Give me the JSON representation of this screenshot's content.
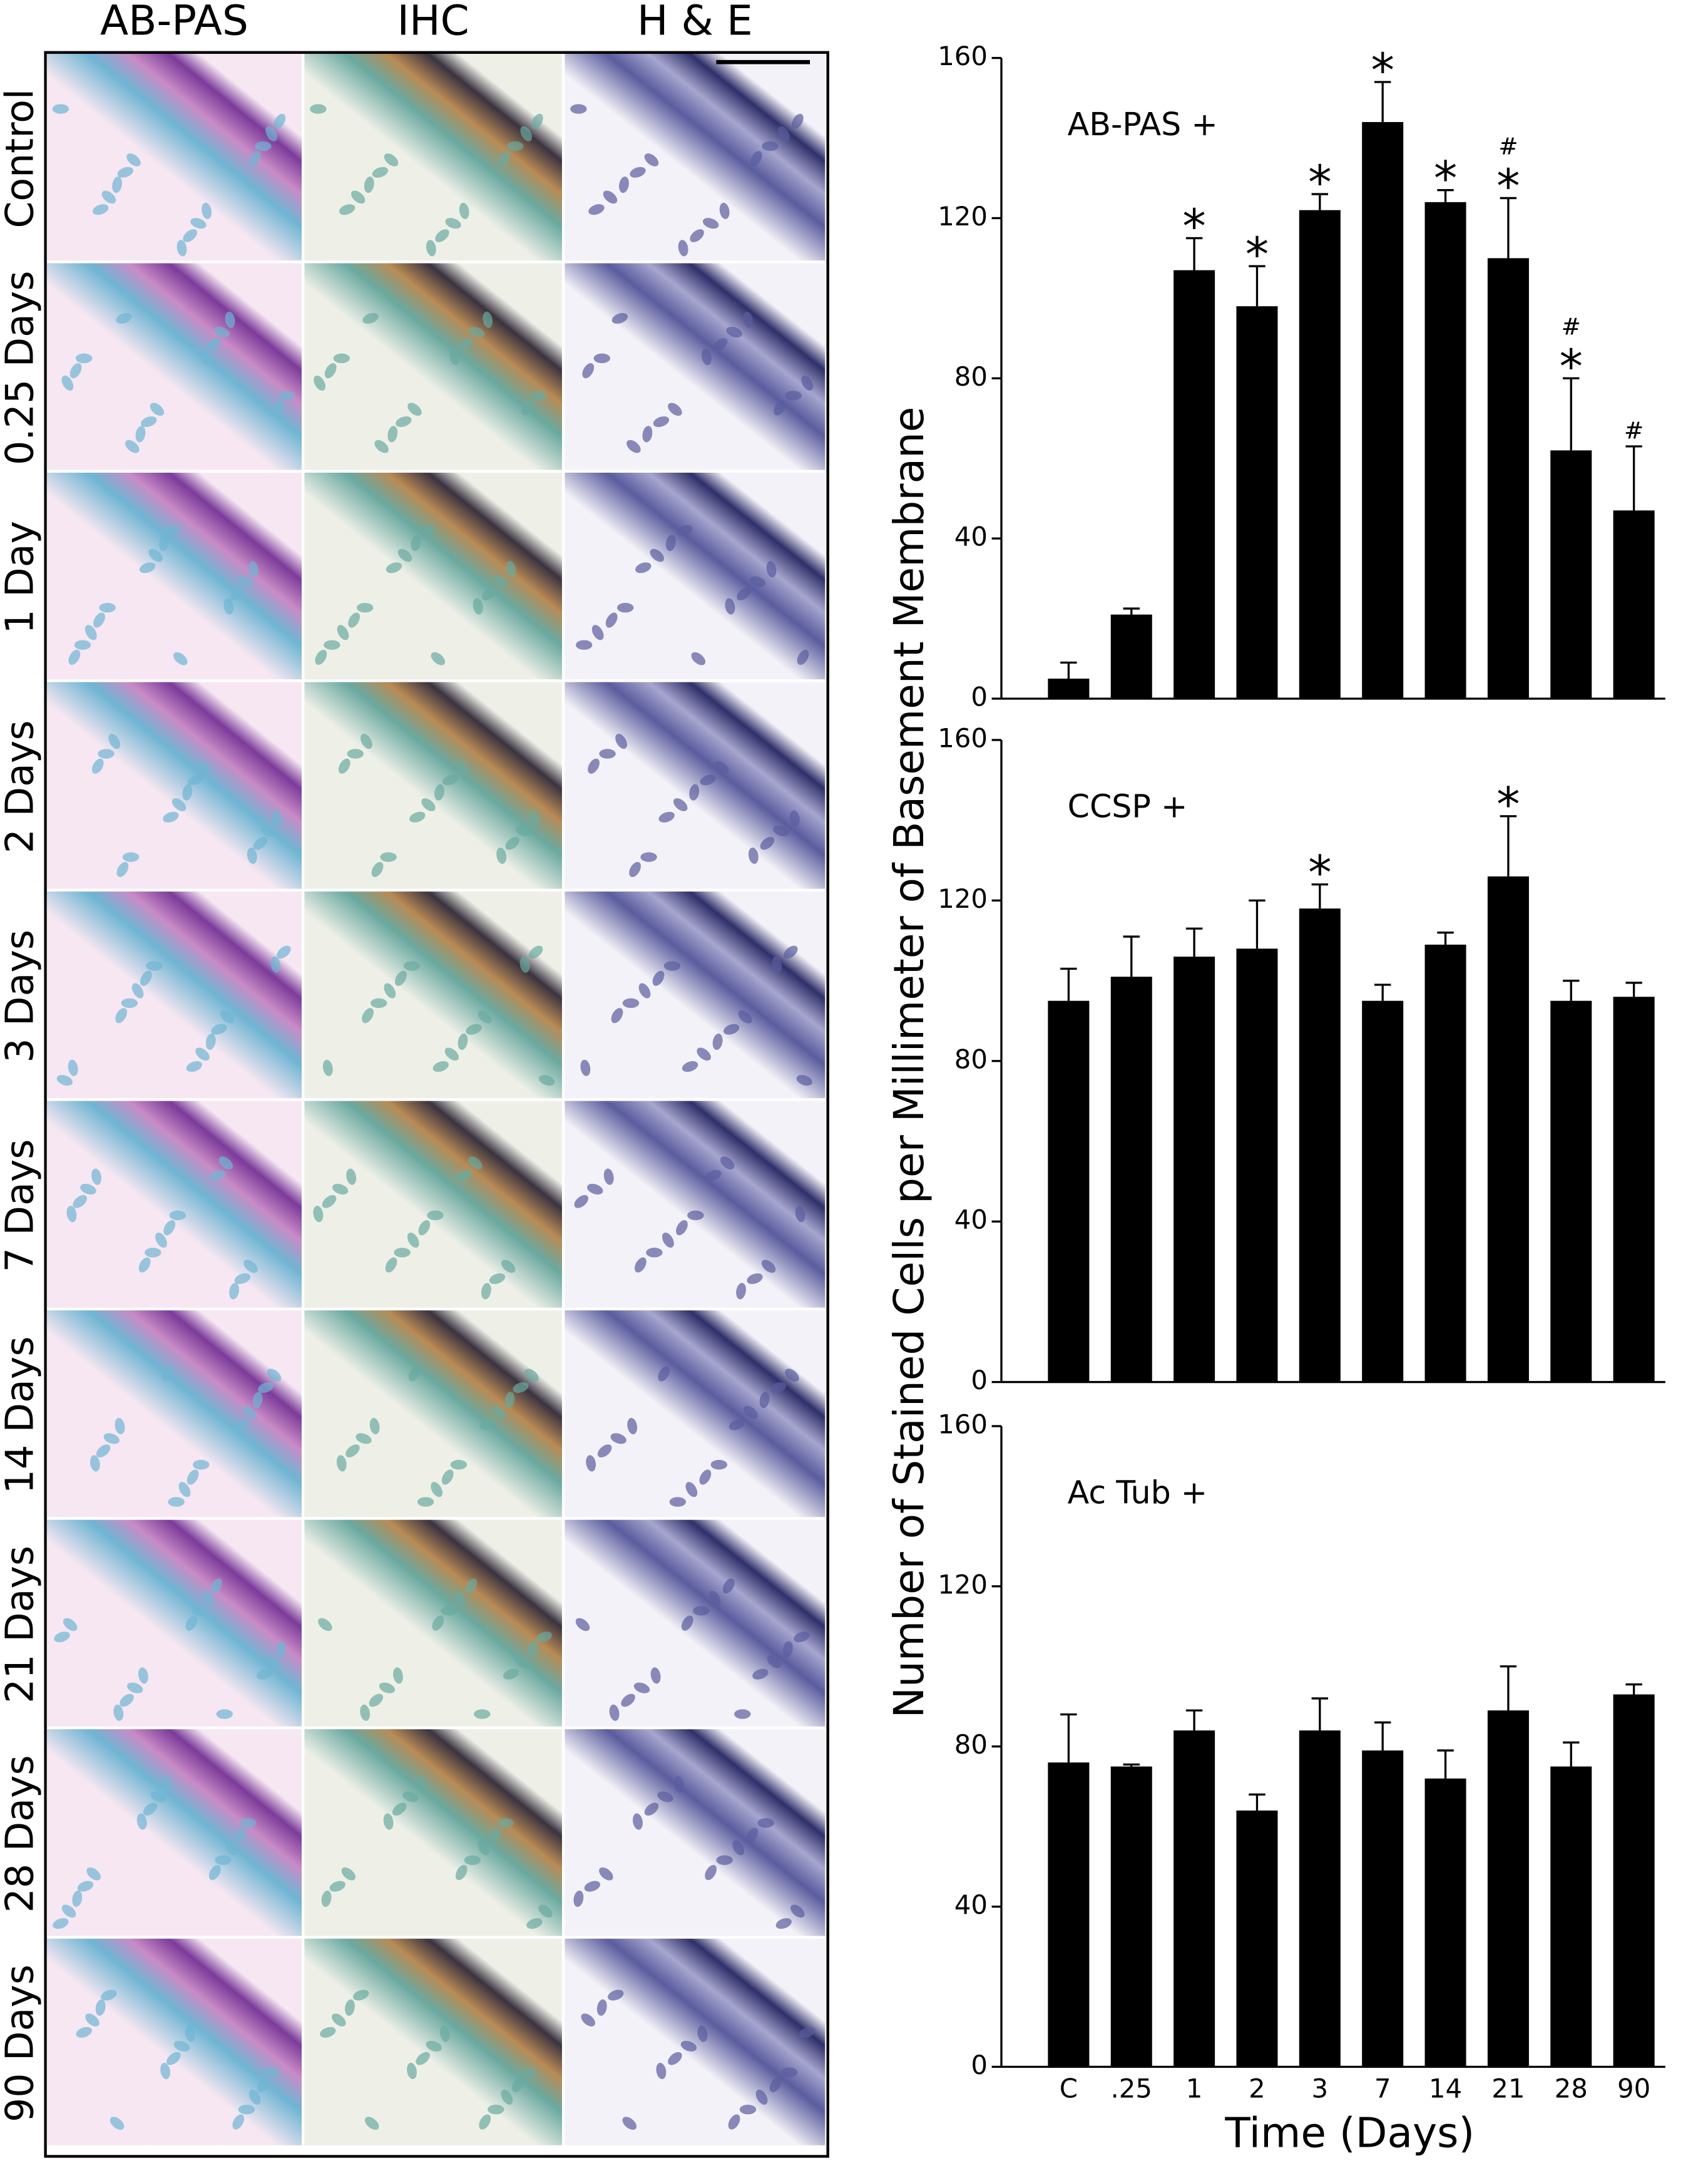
{
  "micrographs": {
    "columns": [
      "AB-PAS",
      "IHC",
      "H & E"
    ],
    "rows": [
      "Control",
      "0.25 Days",
      "1 Day",
      "2 Days",
      "3 Days",
      "7 Days",
      "14 Days",
      "21 Days",
      "28 Days",
      "90 Days"
    ]
  },
  "chart_data": [
    {
      "type": "bar",
      "label": "AB-PAS +",
      "color": "#000000",
      "categories": [
        null,
        null,
        null,
        null,
        null,
        null,
        null,
        null,
        null,
        null
      ],
      "values": [
        5,
        21,
        107,
        98,
        122,
        144,
        124,
        110,
        62,
        47
      ],
      "errors": [
        4,
        1.5,
        8,
        10,
        4,
        10,
        3,
        15,
        18,
        16
      ],
      "stars": [
        null,
        null,
        "*",
        "*",
        "*",
        "*",
        "*",
        "*",
        "*",
        null
      ],
      "hashes": [
        null,
        null,
        null,
        null,
        null,
        null,
        null,
        "#",
        "#",
        "#"
      ],
      "ylim": [
        0,
        160
      ],
      "yticks": [
        0,
        40,
        80,
        120,
        160
      ]
    },
    {
      "type": "bar",
      "label": "CCSP +",
      "color": "#000000",
      "ylabel": "Number of Stained Cells per Millimeter of Basement Membrane",
      "categories": [
        null,
        null,
        null,
        null,
        null,
        null,
        null,
        null,
        null,
        null
      ],
      "values": [
        95,
        101,
        106,
        108,
        118,
        95,
        109,
        126,
        95,
        96
      ],
      "errors": [
        8,
        10,
        7,
        12,
        6,
        4,
        3,
        15,
        5,
        3.5
      ],
      "stars": [
        null,
        null,
        null,
        null,
        "*",
        null,
        null,
        "*",
        null,
        null
      ],
      "ylim": [
        0,
        160
      ],
      "yticks": [
        0,
        40,
        80,
        120,
        160
      ]
    },
    {
      "type": "bar",
      "label": "Ac Tub +",
      "color": "#000000",
      "xlabel": "Time (Days)",
      "categories": [
        "C",
        ".25",
        "1",
        "2",
        "3",
        "7",
        "14",
        "21",
        "28",
        "90"
      ],
      "values": [
        76,
        75,
        84,
        64,
        84,
        79,
        72,
        89,
        75,
        93
      ],
      "errors": [
        12,
        0.5,
        5,
        4,
        8,
        7,
        7,
        11,
        6,
        2.5
      ],
      "ylim": [
        0,
        160
      ],
      "yticks": [
        0,
        40,
        80,
        120,
        160
      ]
    }
  ]
}
